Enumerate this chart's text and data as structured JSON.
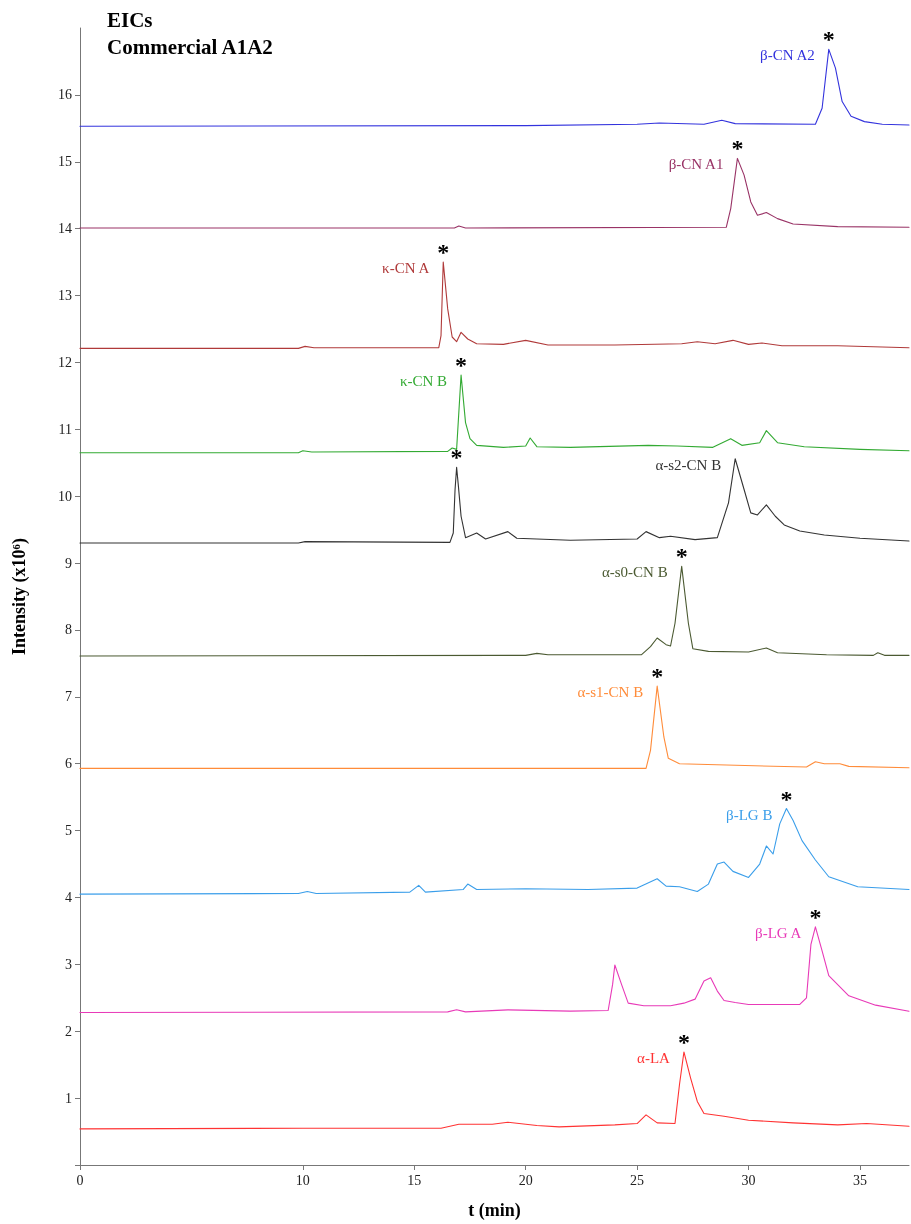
{
  "chart_data": {
    "type": "line",
    "title": "EICs",
    "subtitle": "Commercial A1A2",
    "xlabel": "t (min)",
    "ylabel": "Intensity (x10⁶)",
    "xlim": [
      0,
      37.2
    ],
    "xticks": [
      0,
      10,
      15,
      20,
      25,
      30,
      35
    ],
    "ylim": [
      0,
      17
    ],
    "yticks": [
      {
        "value": 0,
        "label": null
      },
      1,
      2,
      3,
      4,
      5,
      6,
      7,
      8,
      9,
      10,
      11,
      12,
      13,
      14,
      15,
      16
    ],
    "grid": false,
    "legend": false,
    "series": [
      {
        "name": "β-CN A2",
        "color": "#3333dd",
        "x": [
          0,
          20,
          25,
          26,
          28,
          28.8,
          29.4,
          33,
          33.3,
          33.6,
          33.9,
          34.2,
          34.6,
          35.2,
          36,
          37.2
        ],
        "values": [
          15.53,
          15.54,
          15.56,
          15.58,
          15.56,
          15.62,
          15.57,
          15.56,
          15.8,
          16.68,
          16.4,
          15.9,
          15.68,
          15.6,
          15.56,
          15.55
        ]
      },
      {
        "name": "β-CN A1",
        "color": "#993366",
        "x": [
          0,
          16.8,
          17,
          17.3,
          29,
          29.2,
          29.5,
          29.8,
          30.1,
          30.4,
          30.8,
          31.3,
          32,
          34,
          37.2
        ],
        "values": [
          14.01,
          14.01,
          14.04,
          14.01,
          14.02,
          14.3,
          15.05,
          14.8,
          14.4,
          14.2,
          14.24,
          14.15,
          14.07,
          14.03,
          14.02
        ]
      },
      {
        "name": "κ-CN A",
        "color": "#b03a3a",
        "x": [
          0,
          9.8,
          10.1,
          10.5,
          16.1,
          16.2,
          16.3,
          16.5,
          16.7,
          16.9,
          17.1,
          17.4,
          17.8,
          19,
          20,
          21,
          24,
          27,
          27.7,
          28.5,
          29.3,
          30,
          30.6,
          31.5,
          34,
          37.2
        ],
        "values": [
          12.21,
          12.21,
          12.24,
          12.22,
          12.22,
          12.4,
          13.5,
          12.8,
          12.38,
          12.31,
          12.45,
          12.35,
          12.28,
          12.27,
          12.33,
          12.26,
          12.26,
          12.28,
          12.31,
          12.28,
          12.33,
          12.27,
          12.29,
          12.25,
          12.25,
          12.22
        ]
      },
      {
        "name": "κ-CN B",
        "color": "#33aa33",
        "x": [
          0,
          9.8,
          10,
          10.4,
          16.5,
          16.7,
          16.9,
          17.1,
          17.3,
          17.5,
          17.8,
          19,
          20,
          20.2,
          20.5,
          22,
          25.5,
          26.8,
          28.4,
          29.2,
          29.7,
          30.5,
          30.8,
          31.3,
          32.5,
          35,
          37.2
        ],
        "values": [
          10.65,
          10.65,
          10.68,
          10.66,
          10.67,
          10.72,
          10.7,
          11.81,
          11.1,
          10.86,
          10.76,
          10.73,
          10.75,
          10.87,
          10.74,
          10.73,
          10.76,
          10.75,
          10.73,
          10.86,
          10.76,
          10.8,
          10.98,
          10.8,
          10.74,
          10.7,
          10.68
        ]
      },
      {
        "name": "α-s2-CN B",
        "color": "#333333",
        "x": [
          0,
          9.8,
          10.1,
          16.6,
          16.75,
          16.83,
          16.9,
          16.98,
          17.1,
          17.3,
          17.8,
          18.2,
          19.2,
          19.6,
          22,
          25,
          25.4,
          26,
          26.5,
          27.6,
          28.6,
          29.1,
          29.4,
          29.8,
          30.1,
          30.4,
          30.8,
          31.2,
          31.6,
          32.3,
          33.4,
          35,
          37.2
        ],
        "values": [
          9.3,
          9.3,
          9.32,
          9.31,
          9.45,
          10.1,
          10.43,
          10.15,
          9.7,
          9.38,
          9.45,
          9.36,
          9.47,
          9.37,
          9.34,
          9.36,
          9.47,
          9.38,
          9.4,
          9.35,
          9.38,
          9.9,
          10.56,
          10.1,
          9.75,
          9.72,
          9.87,
          9.7,
          9.57,
          9.48,
          9.42,
          9.37,
          9.33
        ]
      },
      {
        "name": "α-s0-CN B",
        "color": "#4b5a32",
        "x": [
          0,
          20,
          20.5,
          21,
          25.2,
          25.6,
          25.9,
          26.3,
          26.5,
          26.7,
          27,
          27.3,
          27.5,
          28.2,
          30,
          30.8,
          31.3,
          33.5,
          35.6,
          35.8,
          36.1,
          37.2
        ],
        "values": [
          7.61,
          7.62,
          7.65,
          7.63,
          7.63,
          7.75,
          7.88,
          7.78,
          7.76,
          8.1,
          8.95,
          8.1,
          7.72,
          7.68,
          7.67,
          7.73,
          7.66,
          7.63,
          7.62,
          7.66,
          7.62,
          7.62
        ]
      },
      {
        "name": "α-s1-CN B",
        "color": "#ff8c3a",
        "x": [
          0,
          25.4,
          25.6,
          25.9,
          26.2,
          26.4,
          26.9,
          29,
          32.6,
          33,
          33.4,
          34.1,
          34.5,
          37.2
        ],
        "values": [
          5.93,
          5.93,
          6.2,
          7.16,
          6.4,
          6.08,
          6,
          5.98,
          5.95,
          6.03,
          6,
          6,
          5.96,
          5.94
        ]
      },
      {
        "name": "β-LG B",
        "color": "#3a9eea",
        "x": [
          0,
          9.8,
          10.2,
          10.6,
          14.8,
          15.2,
          15.5,
          17.2,
          17.4,
          17.8,
          20,
          22.8,
          25,
          25.9,
          26.3,
          26.9,
          27.7,
          28.2,
          28.6,
          28.9,
          29.3,
          30,
          30.5,
          30.8,
          31.1,
          31.4,
          31.7,
          32,
          32.4,
          33,
          33.6,
          34.9,
          37.2
        ],
        "values": [
          4.05,
          4.06,
          4.09,
          4.06,
          4.08,
          4.18,
          4.08,
          4.12,
          4.2,
          4.12,
          4.13,
          4.12,
          4.14,
          4.28,
          4.17,
          4.16,
          4.09,
          4.2,
          4.5,
          4.53,
          4.39,
          4.3,
          4.5,
          4.77,
          4.65,
          5.1,
          5.33,
          5.15,
          4.85,
          4.56,
          4.31,
          4.16,
          4.12
        ]
      },
      {
        "name": "β-LG A",
        "color": "#e83ab8",
        "x": [
          0,
          16.5,
          16.9,
          17.3,
          19.2,
          22,
          23.7,
          23.9,
          24,
          24.3,
          24.6,
          25.3,
          26.5,
          27.1,
          27.6,
          28,
          28.3,
          28.6,
          28.9,
          29.4,
          30,
          32.3,
          32.6,
          32.8,
          33,
          33.3,
          33.6,
          34.5,
          35.7,
          37.2
        ],
        "values": [
          2.28,
          2.29,
          2.32,
          2.29,
          2.32,
          2.3,
          2.31,
          2.7,
          2.99,
          2.7,
          2.42,
          2.38,
          2.38,
          2.42,
          2.48,
          2.75,
          2.8,
          2.6,
          2.46,
          2.43,
          2.4,
          2.4,
          2.5,
          3.3,
          3.56,
          3.2,
          2.83,
          2.53,
          2.39,
          2.3
        ]
      },
      {
        "name": "α-LA",
        "color": "#ff3333",
        "x": [
          0,
          10,
          16.2,
          17,
          18.5,
          19.2,
          20.5,
          21.5,
          24,
          25,
          25.4,
          25.9,
          26.7,
          26.9,
          27.1,
          27.4,
          27.7,
          28,
          28.9,
          30,
          32,
          34,
          35.3,
          37.2
        ],
        "values": [
          0.54,
          0.55,
          0.55,
          0.61,
          0.61,
          0.64,
          0.59,
          0.57,
          0.6,
          0.62,
          0.75,
          0.63,
          0.62,
          1.2,
          1.69,
          1.3,
          0.95,
          0.77,
          0.73,
          0.67,
          0.63,
          0.6,
          0.62,
          0.58
        ]
      }
    ],
    "annotations": [
      {
        "text": "*",
        "x": 33.6,
        "y": 16.68
      },
      {
        "text": "*",
        "x": 29.5,
        "y": 15.05
      },
      {
        "text": "*",
        "x": 16.3,
        "y": 13.5
      },
      {
        "text": "*",
        "x": 17.1,
        "y": 11.81
      },
      {
        "text": "*",
        "x": 16.9,
        "y": 10.43
      },
      {
        "text": "*",
        "x": 27,
        "y": 8.95
      },
      {
        "text": "*",
        "x": 25.9,
        "y": 7.16
      },
      {
        "text": "*",
        "x": 31.7,
        "y": 5.33
      },
      {
        "text": "*",
        "x": 33,
        "y": 3.56
      },
      {
        "text": "*",
        "x": 27.1,
        "y": 1.69
      }
    ]
  }
}
